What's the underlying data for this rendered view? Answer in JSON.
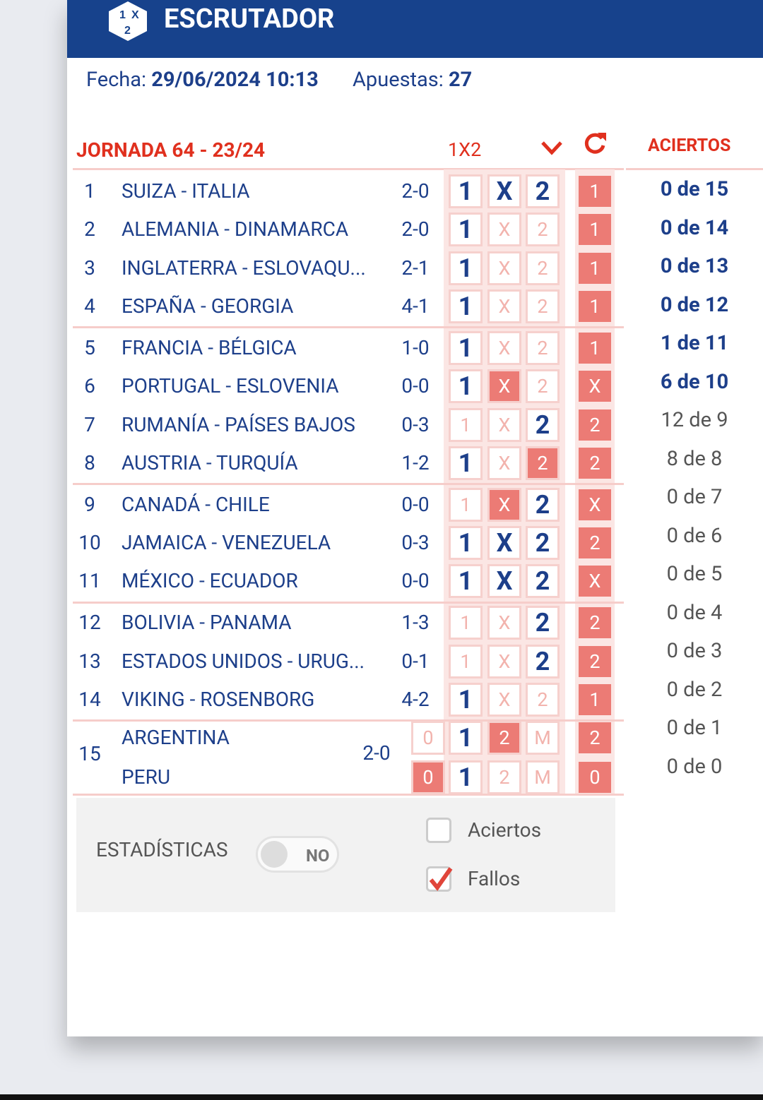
{
  "header": {
    "title": "ESCRUTADOR"
  },
  "info": {
    "fecha_label": "Fecha:",
    "fecha": "29/06/2024 10:13",
    "apuestas_label": "Apuestas:",
    "apuestas": "27"
  },
  "table": {
    "jornada": "JORNADA 64 - 23/24",
    "col_1x2": "1X2",
    "aciertos_label": "ACIERTOS",
    "groups": [
      [
        {
          "num": "1",
          "match": "SUIZA - ITALIA",
          "score": "2-0",
          "cells": [
            {
              "text": "1",
              "state": "on"
            },
            {
              "text": "X",
              "state": "on"
            },
            {
              "text": "2",
              "state": "on"
            }
          ],
          "result": "1"
        },
        {
          "num": "2",
          "match": "ALEMANIA - DINAMARCA",
          "score": "2-0",
          "cells": [
            {
              "text": "1",
              "state": "on"
            },
            {
              "text": "X",
              "state": "off"
            },
            {
              "text": "2",
              "state": "off"
            }
          ],
          "result": "1"
        },
        {
          "num": "3",
          "match": "INGLATERRA - ESLOVAQU...",
          "score": "2-1",
          "cells": [
            {
              "text": "1",
              "state": "on"
            },
            {
              "text": "X",
              "state": "off"
            },
            {
              "text": "2",
              "state": "off"
            }
          ],
          "result": "1"
        },
        {
          "num": "4",
          "match": "ESPAÑA - GEORGIA",
          "score": "4-1",
          "cells": [
            {
              "text": "1",
              "state": "on"
            },
            {
              "text": "X",
              "state": "off"
            },
            {
              "text": "2",
              "state": "off"
            }
          ],
          "result": "1"
        }
      ],
      [
        {
          "num": "5",
          "match": "FRANCIA - BÉLGICA",
          "score": "1-0",
          "cells": [
            {
              "text": "1",
              "state": "on"
            },
            {
              "text": "X",
              "state": "off"
            },
            {
              "text": "2",
              "state": "off"
            }
          ],
          "result": "1"
        },
        {
          "num": "6",
          "match": "PORTUGAL - ESLOVENIA",
          "score": "0-0",
          "cells": [
            {
              "text": "1",
              "state": "on"
            },
            {
              "text": "X",
              "state": "miss"
            },
            {
              "text": "2",
              "state": "off"
            }
          ],
          "result": "X"
        },
        {
          "num": "7",
          "match": "RUMANÍA - PAÍSES BAJOS",
          "score": "0-3",
          "cells": [
            {
              "text": "1",
              "state": "off"
            },
            {
              "text": "X",
              "state": "off"
            },
            {
              "text": "2",
              "state": "on"
            }
          ],
          "result": "2"
        },
        {
          "num": "8",
          "match": "AUSTRIA - TURQUÍA",
          "score": "1-2",
          "cells": [
            {
              "text": "1",
              "state": "on"
            },
            {
              "text": "X",
              "state": "off"
            },
            {
              "text": "2",
              "state": "miss"
            }
          ],
          "result": "2"
        }
      ],
      [
        {
          "num": "9",
          "match": "CANADÁ - CHILE",
          "score": "0-0",
          "cells": [
            {
              "text": "1",
              "state": "off"
            },
            {
              "text": "X",
              "state": "miss"
            },
            {
              "text": "2",
              "state": "on"
            }
          ],
          "result": "X"
        },
        {
          "num": "10",
          "match": "JAMAICA - VENEZUELA",
          "score": "0-3",
          "cells": [
            {
              "text": "1",
              "state": "on"
            },
            {
              "text": "X",
              "state": "on"
            },
            {
              "text": "2",
              "state": "on"
            }
          ],
          "result": "2"
        },
        {
          "num": "11",
          "match": "MÉXICO - ECUADOR",
          "score": "0-0",
          "cells": [
            {
              "text": "1",
              "state": "on"
            },
            {
              "text": "X",
              "state": "on"
            },
            {
              "text": "2",
              "state": "on"
            }
          ],
          "result": "X"
        }
      ],
      [
        {
          "num": "12",
          "match": "BOLIVIA - PANAMA",
          "score": "1-3",
          "cells": [
            {
              "text": "1",
              "state": "off"
            },
            {
              "text": "X",
              "state": "off"
            },
            {
              "text": "2",
              "state": "on"
            }
          ],
          "result": "2"
        },
        {
          "num": "13",
          "match": "ESTADOS UNIDOS - URUG...",
          "score": "0-1",
          "cells": [
            {
              "text": "1",
              "state": "off"
            },
            {
              "text": "X",
              "state": "off"
            },
            {
              "text": "2",
              "state": "on"
            }
          ],
          "result": "2"
        },
        {
          "num": "14",
          "match": "VIKING - ROSENBORG",
          "score": "4-2",
          "cells": [
            {
              "text": "1",
              "state": "on"
            },
            {
              "text": "X",
              "state": "off"
            },
            {
              "text": "2",
              "state": "off"
            }
          ],
          "result": "1"
        }
      ]
    ],
    "final": {
      "num": "15",
      "score": "2-0",
      "lines": [
        {
          "team": "ARGENTINA",
          "cells": [
            {
              "text": "0",
              "state": "off"
            },
            {
              "text": "1",
              "state": "on"
            },
            {
              "text": "2",
              "state": "miss"
            },
            {
              "text": "M",
              "state": "off"
            }
          ],
          "result": "2"
        },
        {
          "team": "PERU",
          "cells": [
            {
              "text": "0",
              "state": "miss"
            },
            {
              "text": "1",
              "state": "on"
            },
            {
              "text": "2",
              "state": "off"
            },
            {
              "text": "M",
              "state": "off"
            }
          ],
          "result": "0"
        }
      ]
    }
  },
  "aciertos": [
    {
      "text": "0 de 15",
      "bold": true
    },
    {
      "text": "0 de 14",
      "bold": true
    },
    {
      "text": "0 de 13",
      "bold": true
    },
    {
      "text": "0 de 12",
      "bold": true
    },
    {
      "text": "1 de 11",
      "bold": true
    },
    {
      "text": "6 de 10",
      "bold": true
    },
    {
      "text": "12 de 9",
      "bold": false
    },
    {
      "text": "8 de 8",
      "bold": false
    },
    {
      "text": "0 de 7",
      "bold": false
    },
    {
      "text": "0 de 6",
      "bold": false
    },
    {
      "text": "0 de 5",
      "bold": false
    },
    {
      "text": "0 de 4",
      "bold": false
    },
    {
      "text": "0 de 3",
      "bold": false
    },
    {
      "text": "0 de 2",
      "bold": false
    },
    {
      "text": "0 de 1",
      "bold": false
    },
    {
      "text": "0 de 0",
      "bold": false
    }
  ],
  "footer": {
    "stats_label": "ESTADÍSTICAS",
    "toggle": "NO",
    "options": [
      {
        "label": "Aciertos",
        "checked": false
      },
      {
        "label": "Fallos",
        "checked": true
      }
    ]
  }
}
